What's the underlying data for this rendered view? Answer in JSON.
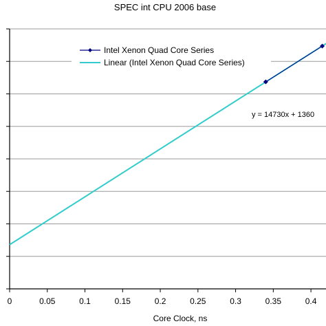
{
  "chart_data": {
    "type": "scatter",
    "title": "SPEC int CPU 2006 base",
    "xlabel": "Core Clock, ns",
    "ylabel": "",
    "xlim": [
      0,
      0.42
    ],
    "ylim": [
      0,
      8000
    ],
    "x_ticks": [
      "0",
      "0.05",
      "0.1",
      "0.15",
      "0.2",
      "0.25",
      "0.3",
      "0.35",
      "0.4"
    ],
    "x_tick_values": [
      0,
      0.05,
      0.1,
      0.15,
      0.2,
      0.25,
      0.3,
      0.35,
      0.4
    ],
    "y_tick_values": [
      0,
      1000,
      2000,
      3000,
      4000,
      5000,
      6000,
      7000,
      8000
    ],
    "grid": "horizontal",
    "legend_position": "top-right",
    "series": [
      {
        "name": "Intel Xenon Quad Core Series",
        "kind": "markers-line",
        "color": "#000080",
        "points": [
          {
            "x": 0.34,
            "y": 6370
          },
          {
            "x": 0.415,
            "y": 7470
          }
        ]
      },
      {
        "name": "Linear (Intel Xenon Quad Core Series)",
        "kind": "trendline",
        "color": "#33CCCC",
        "slope": 14730,
        "intercept": 1360
      }
    ],
    "annotation": "y = 14730x + 1360"
  }
}
